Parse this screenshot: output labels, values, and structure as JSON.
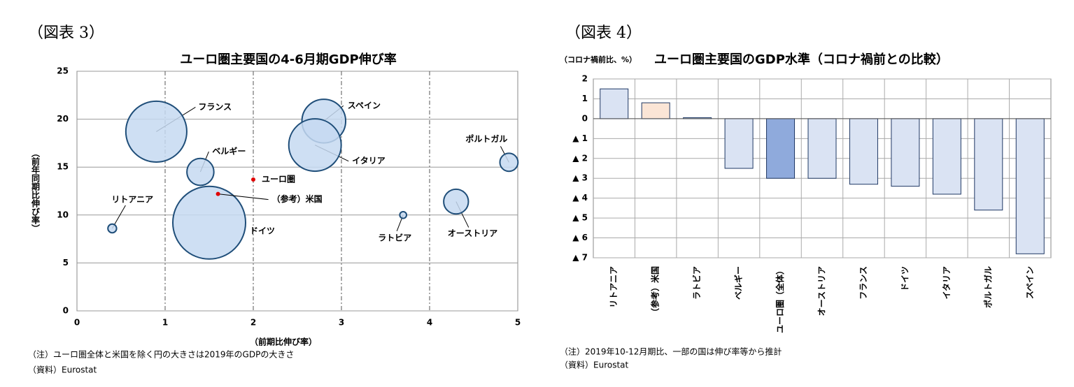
{
  "charts": [
    {
      "chart_data": {
        "type": "bubble",
        "header": "（図表 3）",
        "title": "ユーロ圏主要国の4-6月期GDP伸び率",
        "xlabel": "（前期比伸び率）",
        "ylabel": "（前年同期比伸び率）",
        "xlim": [
          0,
          5
        ],
        "xticks": [
          0,
          1,
          2,
          3,
          4,
          5
        ],
        "ylim": [
          0,
          25
        ],
        "yticks": [
          0,
          5,
          10,
          15,
          20,
          25
        ],
        "grid": true,
        "series": [
          {
            "color": "#c5d9f1",
            "edge": "#1f4e79",
            "labels": [
              "フランス",
              "スペイン",
              "イタリア",
              "ベルギー",
              "ポルトガル",
              "リトアニア",
              "ドイツ",
              "ラトビア",
              "オーストリア"
            ],
            "x": [
              0.9,
              2.8,
              2.7,
              1.4,
              4.9,
              0.4,
              1.5,
              3.7,
              4.3
            ],
            "values": [
              18.7,
              19.8,
              17.3,
              14.5,
              15.5,
              8.6,
              9.2,
              10.0,
              11.4
            ],
            "sizes": [
              2419,
              1245,
              1790,
              473,
              213,
              49,
              3449,
              30,
              398
            ]
          },
          {
            "color": "#e00000",
            "labels": [
              "ユーロ圏",
              "（参考）米国"
            ],
            "x": [
              2.0,
              1.6
            ],
            "values": [
              13.7,
              12.2
            ]
          }
        ],
        "notes": [
          "（注）ユーロ圏全体と米国を除く円の大きさは2019年のGDPの大きさ",
          "（資料）Eurostat"
        ]
      }
    },
    {
      "chart_data": {
        "type": "bar",
        "header": "（図表 4）",
        "title": "ユーロ圏主要国のGDP水準（コロナ禍前との比較）",
        "unit": "（コロナ禍前比、%）",
        "categories": [
          "リトアニア",
          "（参考）米国",
          "ラトビア",
          "ベルギー",
          "ユーロ圏（全体）",
          "オーストリア",
          "フランス",
          "ドイツ",
          "イタリア",
          "ポルトガル",
          "スペイン"
        ],
        "values": [
          1.5,
          0.8,
          0.05,
          -2.5,
          -3.0,
          -3.0,
          -3.3,
          -3.4,
          -3.8,
          -4.6,
          -6.8
        ],
        "colors": [
          "#dae3f3",
          "#fbe5d6",
          "#dae3f3",
          "#dae3f3",
          "#8faadc",
          "#dae3f3",
          "#dae3f3",
          "#dae3f3",
          "#dae3f3",
          "#dae3f3",
          "#dae3f3"
        ],
        "ylim": [
          -7,
          2
        ],
        "yticks": [
          2,
          1,
          0,
          {
            "value": -1,
            "label": "▲ 1"
          },
          {
            "value": -2,
            "label": "▲ 2"
          },
          {
            "value": -3,
            "label": "▲ 3"
          },
          {
            "value": -4,
            "label": "▲ 4"
          },
          {
            "value": -5,
            "label": "▲ 5"
          },
          {
            "value": -6,
            "label": "▲ 6"
          },
          {
            "value": -7,
            "label": "▲ 7"
          }
        ],
        "grid": true,
        "notes": [
          "（注）2019年10-12月期比、一部の国は伸び率等から推計",
          "（資料）Eurostat"
        ]
      }
    }
  ]
}
